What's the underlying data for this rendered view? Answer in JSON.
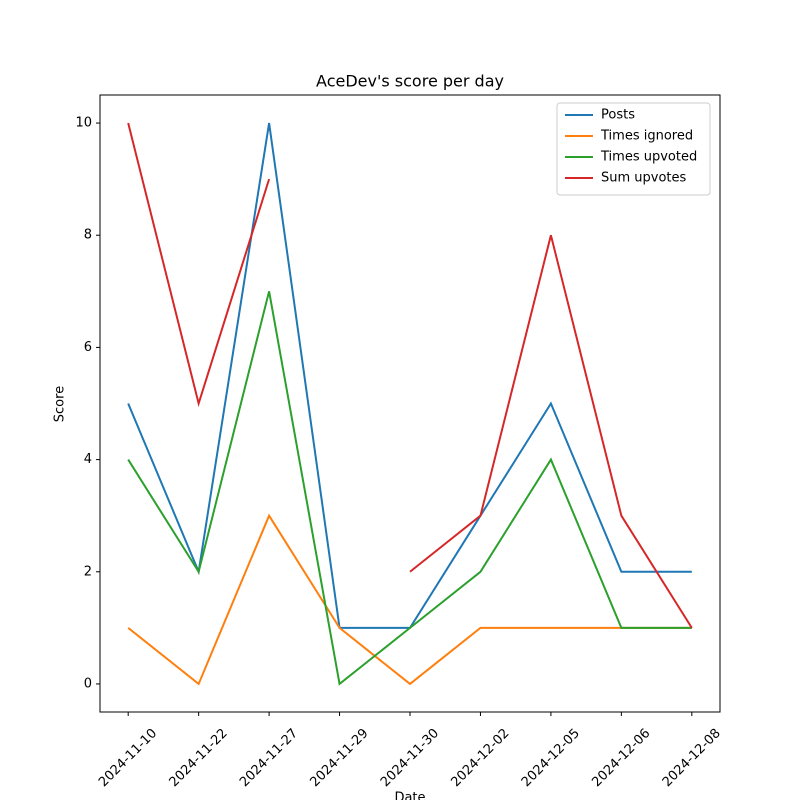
{
  "chart_data": {
    "type": "line",
    "title": "AceDev's score per day",
    "xlabel": "Date",
    "ylabel": "Score",
    "categories": [
      "2024-11-10",
      "2024-11-22",
      "2024-11-27",
      "2024-11-29",
      "2024-11-30",
      "2024-12-02",
      "2024-12-05",
      "2024-12-06",
      "2024-12-08"
    ],
    "series": [
      {
        "name": "Posts",
        "color": "#1f77b4",
        "values": [
          5,
          2,
          10,
          1,
          1,
          3,
          5,
          2,
          2
        ]
      },
      {
        "name": "Times ignored",
        "color": "#ff7f0e",
        "values": [
          1,
          0,
          3,
          1,
          0,
          1,
          1,
          1,
          1
        ]
      },
      {
        "name": "Times upvoted",
        "color": "#2ca02c",
        "values": [
          4,
          2,
          7,
          0,
          1,
          2,
          4,
          1,
          1
        ]
      },
      {
        "name": "Sum upvotes",
        "color": "#d62728",
        "values": [
          10,
          5,
          9,
          null,
          2,
          3,
          8,
          3,
          1
        ]
      }
    ],
    "ylim": [
      -0.5,
      10.5
    ],
    "yticks": [
      0,
      2,
      4,
      6,
      8,
      10
    ],
    "grid": false,
    "legend": "upper right"
  }
}
